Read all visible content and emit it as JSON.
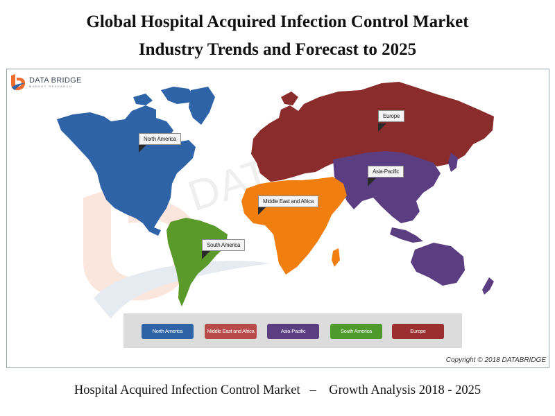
{
  "title": {
    "line1": "Global Hospital Acquired Infection Control Market",
    "line2": "Industry Trends and Forecast to 2025"
  },
  "logo": {
    "main": "DATA BRIDGE",
    "sub": "MARKET RESEARCH"
  },
  "regions": [
    {
      "name": "North America",
      "color": "#2e63a8"
    },
    {
      "name": "Europe",
      "color": "#8b2c2c"
    },
    {
      "name": "Asia-Pacific",
      "color": "#5b3e82"
    },
    {
      "name": "Middle East and Africa",
      "color": "#f07f0f"
    },
    {
      "name": "South America",
      "color": "#5a9a2a"
    }
  ],
  "map_labels": {
    "north_america": "North America",
    "europe": "Europe",
    "asia_pacific": "Asia-Pacific",
    "middle_east_africa": "Middle East and Africa",
    "south_america": "South America"
  },
  "legend": {
    "north_america": "North America",
    "middle_east_africa": "Middle East and Africa",
    "asia_pacific": "Asia-Pacific",
    "south_america": "South America",
    "europe": "Europe"
  },
  "copyright": "Copyright © 2018 DATABRIDGE",
  "footer": "Hospital Acquired Infection Control Market   –    Growth Analysis 2018 - 2025"
}
